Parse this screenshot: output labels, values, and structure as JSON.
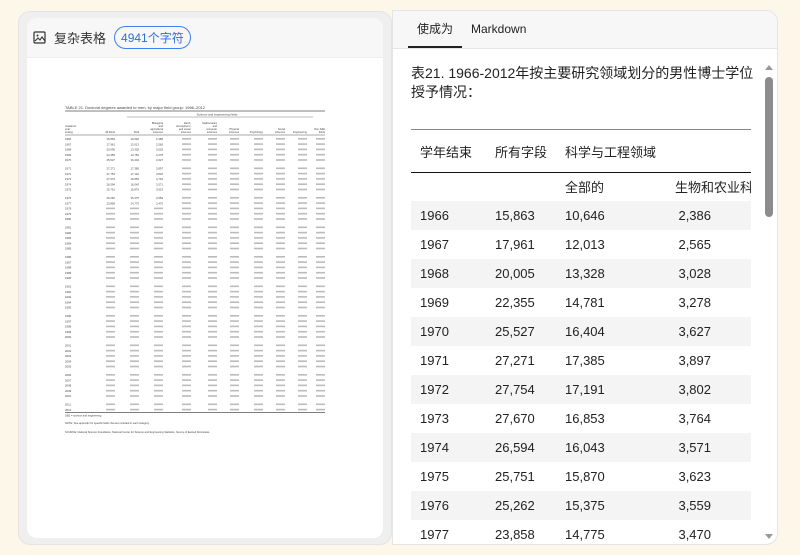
{
  "left_panel": {
    "icon": "image-icon",
    "title": "复杂表格",
    "char_badge": "4941个字符",
    "thumbnail": {
      "table_title": "TABLE 21. Doctoral degrees awarded to men, by major field group: 1966–2012",
      "group_header": "Science and engineering fields",
      "columns": [
        "Academic year ending",
        "All fields",
        "Total",
        "Biological and agricultural sciences",
        "Earth, atmospheric, and ocean sciences",
        "Mathematics and computer sciences",
        "Physical sciences",
        "Psychology",
        "Social sciences",
        "Engineering",
        "Non-S&E fields"
      ],
      "notes": [
        "S&E = science and engineering.",
        "NOTE: See appendix for specific fields that are included in each category.",
        "SOURCE: National Science Foundation, National Center for Science and Engineering Statistics, Survey of Earned Doctorates."
      ]
    }
  },
  "right_panel": {
    "tabs": [
      {
        "label": "使成为",
        "active": true
      },
      {
        "label": "Markdown",
        "active": false
      }
    ],
    "doc_title": "表21. 1966-2012年按主要研究领域划分的男性博士学位授予情况：",
    "table": {
      "header1": [
        "学年结束",
        "所有字段",
        "科学与工程领域",
        ""
      ],
      "header2": [
        "",
        "",
        "全部的",
        "生物和农业科学"
      ],
      "rows": [
        [
          "1966",
          "15,863",
          "10,646",
          "2,386"
        ],
        [
          "1967",
          "17,961",
          "12,013",
          "2,565"
        ],
        [
          "1968",
          "20,005",
          "13,328",
          "3,028"
        ],
        [
          "1969",
          "22,355",
          "14,781",
          "3,278"
        ],
        [
          "1970",
          "25,527",
          "16,404",
          "3,627"
        ],
        [
          "1971",
          "27,271",
          "17,385",
          "3,897"
        ],
        [
          "1972",
          "27,754",
          "17,191",
          "3,802"
        ],
        [
          "1973",
          "27,670",
          "16,853",
          "3,764"
        ],
        [
          "1974",
          "26,594",
          "16,043",
          "3,571"
        ],
        [
          "1975",
          "25,751",
          "15,870",
          "3,623"
        ],
        [
          "1976",
          "25,262",
          "15,375",
          "3,559"
        ],
        [
          "1977",
          "23,858",
          "14,775",
          "3,470"
        ]
      ]
    }
  }
}
